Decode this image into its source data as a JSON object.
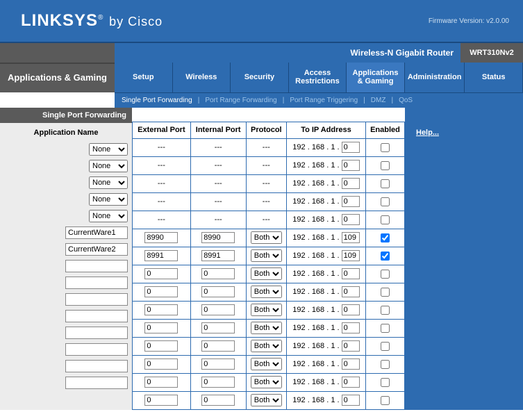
{
  "header": {
    "brand_main": "LINKSYS",
    "brand_reg": "®",
    "brand_by": "by Cisco",
    "firmware": "Firmware Version: v2.0.00",
    "device": "Wireless-N Gigabit Router",
    "model": "WRT310Nv2"
  },
  "section_title": "Applications & Gaming",
  "tabs": [
    {
      "label": "Setup",
      "active": false
    },
    {
      "label": "Wireless",
      "active": false
    },
    {
      "label": "Security",
      "active": false
    },
    {
      "label": "Access Restrictions",
      "active": false
    },
    {
      "label": "Applications & Gaming",
      "active": true
    },
    {
      "label": "Administration",
      "active": false
    },
    {
      "label": "Status",
      "active": false
    }
  ],
  "subnav": [
    {
      "label": "Single Port Forwarding",
      "active": true
    },
    {
      "label": "Port Range Forwarding",
      "active": false
    },
    {
      "label": "Port Range Triggering",
      "active": false
    },
    {
      "label": "DMZ",
      "active": false
    },
    {
      "label": "QoS",
      "active": false
    }
  ],
  "left_section_label": "Single Port Forwarding",
  "appname_header": "Application Name",
  "columns": {
    "ext": "External Port",
    "int": "Internal Port",
    "proto": "Protocol",
    "ip": "To IP Address",
    "en": "Enabled"
  },
  "ip_prefix": {
    "a": "192",
    "b": "168",
    "c": "1"
  },
  "preset_rows": [
    {
      "app": "None",
      "last": "0"
    },
    {
      "app": "None",
      "last": "0"
    },
    {
      "app": "None",
      "last": "0"
    },
    {
      "app": "None",
      "last": "0"
    },
    {
      "app": "None",
      "last": "0"
    }
  ],
  "custom_rows": [
    {
      "name": "CurrentWare1",
      "ext": "8990",
      "int": "8990",
      "proto": "Both",
      "last": "109",
      "en": true
    },
    {
      "name": "CurrentWare2",
      "ext": "8991",
      "int": "8991",
      "proto": "Both",
      "last": "109",
      "en": true
    },
    {
      "name": "",
      "ext": "0",
      "int": "0",
      "proto": "Both",
      "last": "0",
      "en": false
    },
    {
      "name": "",
      "ext": "0",
      "int": "0",
      "proto": "Both",
      "last": "0",
      "en": false
    },
    {
      "name": "",
      "ext": "0",
      "int": "0",
      "proto": "Both",
      "last": "0",
      "en": false
    },
    {
      "name": "",
      "ext": "0",
      "int": "0",
      "proto": "Both",
      "last": "0",
      "en": false
    },
    {
      "name": "",
      "ext": "0",
      "int": "0",
      "proto": "Both",
      "last": "0",
      "en": false
    },
    {
      "name": "",
      "ext": "0",
      "int": "0",
      "proto": "Both",
      "last": "0",
      "en": false
    },
    {
      "name": "",
      "ext": "0",
      "int": "0",
      "proto": "Both",
      "last": "0",
      "en": false
    },
    {
      "name": "",
      "ext": "0",
      "int": "0",
      "proto": "Both",
      "last": "0",
      "en": false
    }
  ],
  "help_label": "Help...",
  "dash": "---"
}
